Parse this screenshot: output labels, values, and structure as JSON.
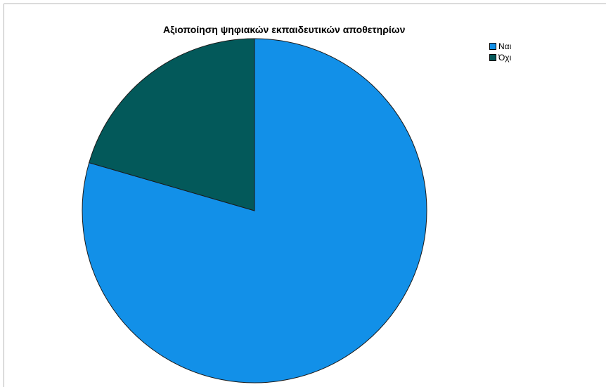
{
  "chart_data": {
    "type": "pie",
    "title": "Αξιοποίηση ψηφιακών εκπαιδευτικών αποθετηρίων",
    "legend_position": "top-right",
    "slices": [
      {
        "label": "Ναι",
        "value": 79.5,
        "color": "#1290e8"
      },
      {
        "label": "Όχι",
        "value": 20.5,
        "color": "#03595a"
      }
    ],
    "start_angle_deg": 0,
    "direction": "clockwise"
  }
}
